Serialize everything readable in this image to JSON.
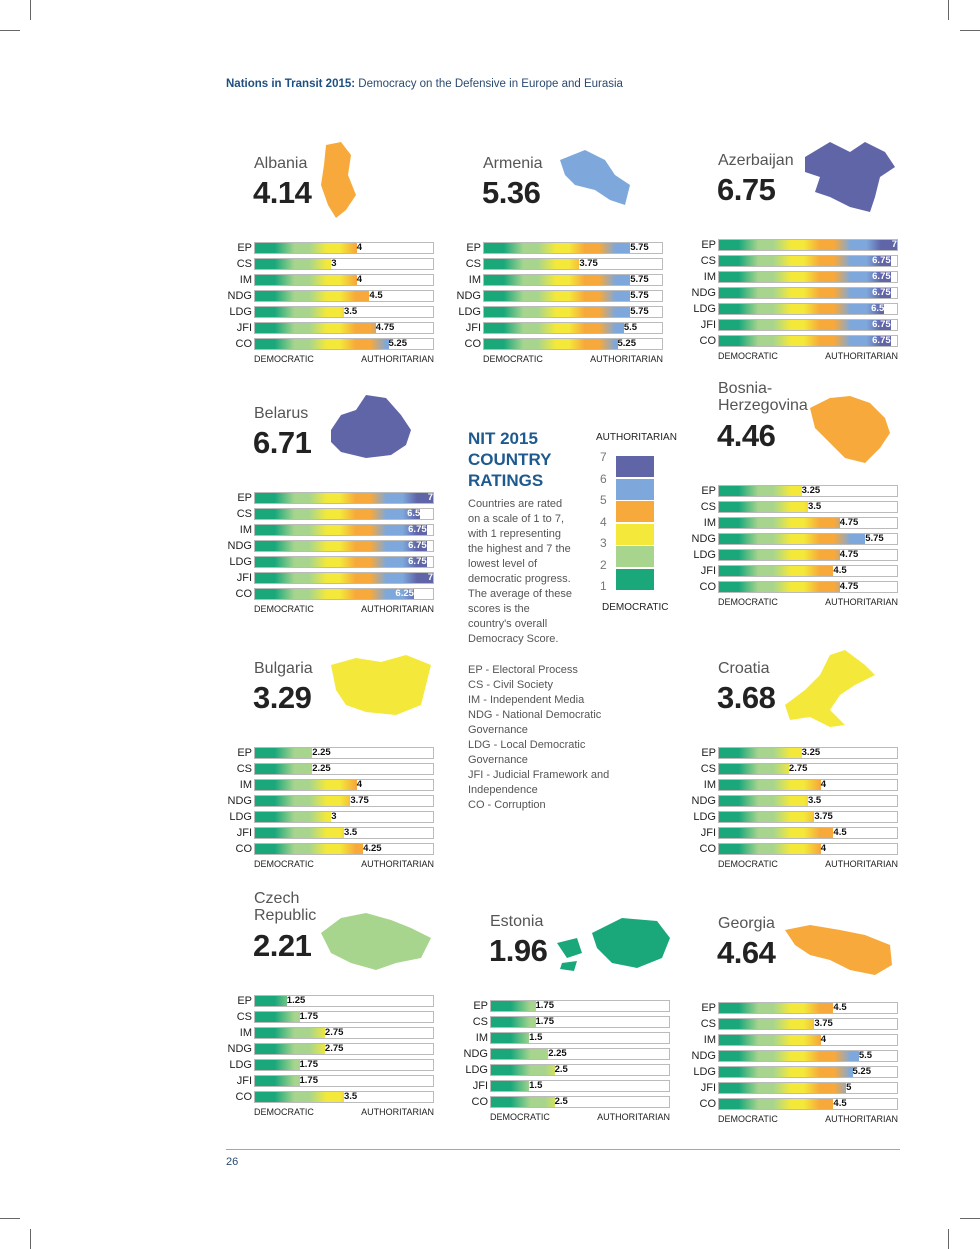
{
  "header": {
    "bold": "Nations in Transit 2015:",
    "rest": " Democracy on the Defensive in Europe and Eurasia"
  },
  "axis": {
    "left": "DEMOCRATIC",
    "right": "AUTHORITARIAN"
  },
  "categories": [
    "EP",
    "CS",
    "IM",
    "NDG",
    "LDG",
    "JFI",
    "CO"
  ],
  "countries": [
    {
      "name": "Albania",
      "score": "4.14",
      "values": [
        4,
        3,
        4,
        4.5,
        3.5,
        4.75,
        5.25
      ],
      "labels": [
        "4",
        "3",
        "4",
        "4.5",
        "3.5",
        "4.75",
        "5.25"
      ],
      "color": "#f7a93b"
    },
    {
      "name": "Armenia",
      "score": "5.36",
      "values": [
        5.75,
        3.75,
        5.75,
        5.75,
        5.75,
        5.5,
        5.25
      ],
      "labels": [
        "5.75",
        "3.75",
        "5.75",
        "5.75",
        "5.75",
        "5.5",
        "5.25"
      ],
      "color": "#7ea8dc"
    },
    {
      "name": "Azerbaijan",
      "score": "6.75",
      "values": [
        7,
        6.75,
        6.75,
        6.75,
        6.5,
        6.75,
        6.75
      ],
      "labels": [
        "7",
        "6.75",
        "6.75",
        "6.75",
        "6.5",
        "6.75",
        "6.75"
      ],
      "color": "#6065a8"
    },
    {
      "name": "Belarus",
      "score": "6.71",
      "values": [
        7,
        6.5,
        6.75,
        6.75,
        6.75,
        7,
        6.25
      ],
      "labels": [
        "7",
        "6.5",
        "6.75",
        "6.75",
        "6.75",
        "7",
        "6.25"
      ],
      "color": "#6065a8"
    },
    {
      "name": "Bosnia-\nHerzegovina",
      "score": "4.46",
      "values": [
        3.25,
        3.5,
        4.75,
        5.75,
        4.75,
        4.5,
        4.75
      ],
      "labels": [
        "3.25",
        "3.5",
        "4.75",
        "5.75",
        "4.75",
        "4.5",
        "4.75"
      ],
      "color": "#f7a93b"
    },
    {
      "name": "Bulgaria",
      "score": "3.29",
      "values": [
        2.25,
        2.25,
        4,
        3.75,
        3,
        3.5,
        4.25
      ],
      "labels": [
        "2.25",
        "2.25",
        "4",
        "3.75",
        "3",
        "3.5",
        "4.25"
      ],
      "color": "#f4e93a"
    },
    {
      "name": "Croatia",
      "score": "3.68",
      "values": [
        3.25,
        2.75,
        4,
        3.5,
        3.75,
        4.5,
        4
      ],
      "labels": [
        "3.25",
        "2.75",
        "4",
        "3.5",
        "3.75",
        "4.5",
        "4"
      ],
      "color": "#f4e93a"
    },
    {
      "name": "Czech\nRepublic",
      "score": "2.21",
      "values": [
        1.25,
        1.75,
        2.75,
        2.75,
        1.75,
        1.75,
        3.5
      ],
      "labels": [
        "1.25",
        "1.75",
        "2.75",
        "2.75",
        "1.75",
        "1.75",
        "3.5"
      ],
      "color": "#a7d58e"
    },
    {
      "name": "Estonia",
      "score": "1.96",
      "values": [
        1.75,
        1.75,
        1.5,
        2.25,
        2.5,
        1.5,
        2.5
      ],
      "labels": [
        "1.75",
        "1.75",
        "1.5",
        "2.25",
        "2.5",
        "1.5",
        "2.5"
      ],
      "color": "#1aa87b"
    },
    {
      "name": "Georgia",
      "score": "4.64",
      "values": [
        4.5,
        3.75,
        4,
        5.5,
        5.25,
        5,
        4.5
      ],
      "labels": [
        "4.5",
        "3.75",
        "4",
        "5.5",
        "5.25",
        "5",
        "4.5"
      ],
      "color": "#f7a93b"
    }
  ],
  "legend": {
    "title": "NIT 2015\nCOUNTRY\nRATINGS",
    "desc": "Countries are rated on a scale of 1 to 7, with 1 representing the highest and 7 the lowest level of democratic progress. The average of these scores is the country's overall Democracy Score.",
    "abbr": [
      "EP - Electoral Process",
      "CS - Civil Society",
      "IM - Independent Media",
      "NDG - National Democratic Governance",
      "LDG - Local Democratic Governance",
      "JFI - Judicial Framework and Independence",
      "CO - Corruption"
    ]
  },
  "scale": {
    "top": "AUTHORITARIAN",
    "bottom": "DEMOCRATIC",
    "levels": [
      "7",
      "6",
      "5",
      "4",
      "3",
      "2",
      "1"
    ],
    "colors": [
      "#6065a8",
      "#7ea8dc",
      "#f7a93b",
      "#f4e93a",
      "#a7d58e",
      "#1aa87b"
    ]
  },
  "page_number": "26"
}
